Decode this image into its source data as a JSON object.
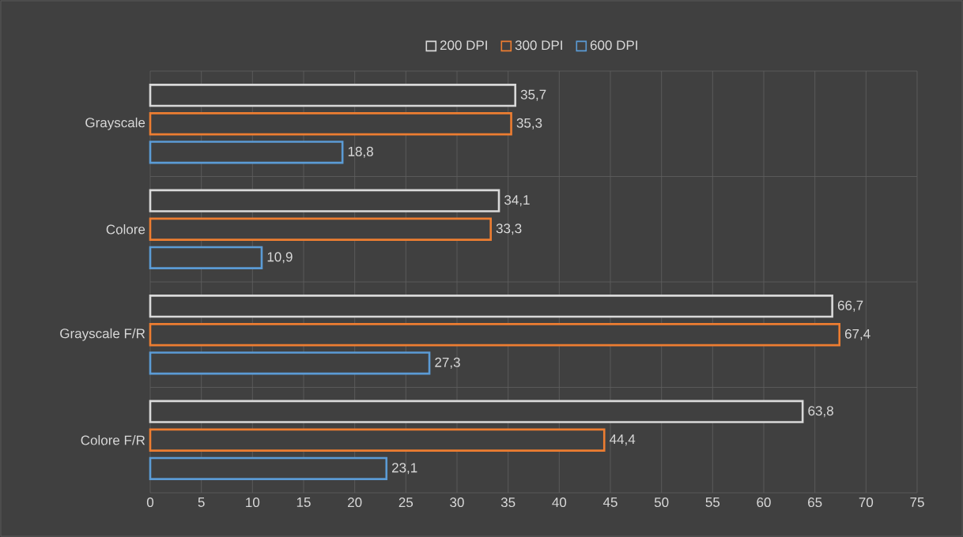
{
  "chart_data": {
    "type": "bar",
    "orientation": "horizontal",
    "categories": [
      "Grayscale",
      "Colore",
      "Grayscale F/R",
      "Colore F/R"
    ],
    "series": [
      {
        "name": "200 DPI",
        "color": "#d9d9d9",
        "values": [
          35.7,
          34.1,
          66.7,
          63.8
        ],
        "value_labels": [
          "35,7",
          "34,1",
          "66,7",
          "63,8"
        ]
      },
      {
        "name": "300 DPI",
        "color": "#ed7d31",
        "values": [
          35.3,
          33.3,
          67.4,
          44.4
        ],
        "value_labels": [
          "35,3",
          "33,3",
          "67,4",
          "44,4"
        ]
      },
      {
        "name": "600 DPI",
        "color": "#5b9bd5",
        "values": [
          18.8,
          10.9,
          27.3,
          23.1
        ],
        "value_labels": [
          "18,8",
          "10,9",
          "27,3",
          "23,1"
        ]
      }
    ],
    "xlim": [
      0,
      75
    ],
    "xticks": [
      0,
      5,
      10,
      15,
      20,
      25,
      30,
      35,
      40,
      45,
      50,
      55,
      60,
      65,
      70,
      75
    ],
    "grid": true,
    "legend": "top"
  }
}
